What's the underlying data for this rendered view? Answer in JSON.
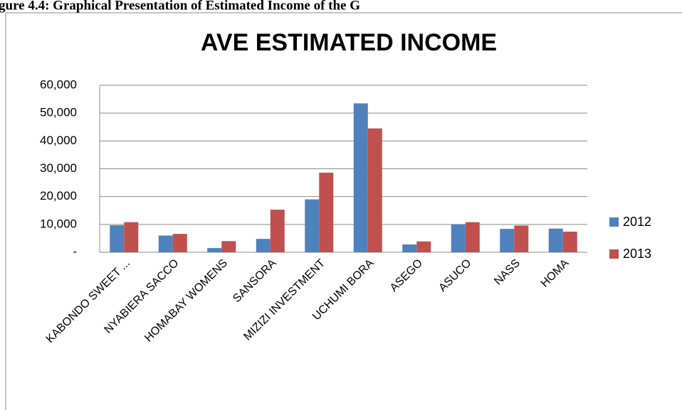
{
  "caption": "gure 4.4: Graphical Presentation of Estimated Income of the G",
  "chart_data": {
    "type": "bar",
    "title": "AVE ESTIMATED INCOME",
    "categories": [
      "KABONDO SWEET ...",
      "NYABIERA SACCO",
      "HOMABAY WOMENS",
      "SANSORA",
      "MIZIZI INVESTMENT",
      "UCHUMI BORA",
      "ASEGO",
      "ASUCO",
      "NASS",
      "HOMA"
    ],
    "series": [
      {
        "name": "2012",
        "color": "#4f81bd",
        "values": [
          9700,
          6000,
          1500,
          4800,
          19000,
          53500,
          2800,
          10000,
          8400,
          8500
        ]
      },
      {
        "name": "2013",
        "color": "#c0504d",
        "values": [
          10800,
          6600,
          4000,
          15300,
          28600,
          44500,
          3900,
          10800,
          9600,
          7400
        ]
      }
    ],
    "ylim": [
      0,
      60000
    ],
    "yticks": [
      {
        "value": 0,
        "label": "-"
      },
      {
        "value": 10000,
        "label": "10,000"
      },
      {
        "value": 20000,
        "label": "20,000"
      },
      {
        "value": 30000,
        "label": "30,000"
      },
      {
        "value": 40000,
        "label": "40,000"
      },
      {
        "value": 50000,
        "label": "50,000"
      },
      {
        "value": 60000,
        "label": "60,000"
      }
    ],
    "grid": true,
    "legend": "right"
  }
}
